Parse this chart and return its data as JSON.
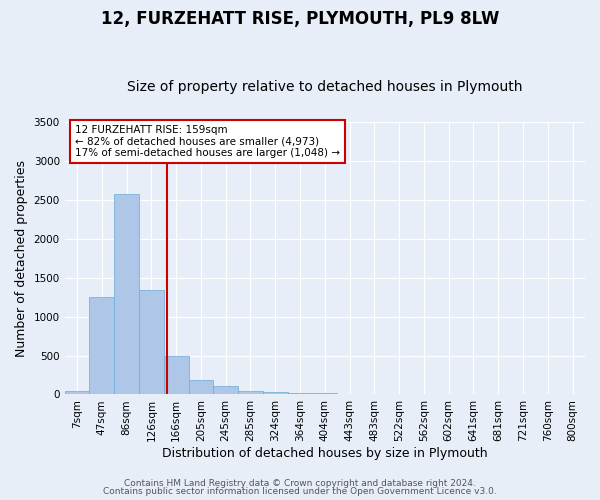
{
  "title": "12, FURZEHATT RISE, PLYMOUTH, PL9 8LW",
  "subtitle": "Size of property relative to detached houses in Plymouth",
  "xlabel": "Distribution of detached houses by size in Plymouth",
  "ylabel": "Number of detached properties",
  "bar_labels": [
    "7sqm",
    "47sqm",
    "86sqm",
    "126sqm",
    "166sqm",
    "205sqm",
    "245sqm",
    "285sqm",
    "324sqm",
    "364sqm",
    "404sqm",
    "443sqm",
    "483sqm",
    "522sqm",
    "562sqm",
    "602sqm",
    "641sqm",
    "681sqm",
    "721sqm",
    "760sqm",
    "800sqm"
  ],
  "bar_values": [
    50,
    1250,
    2580,
    1340,
    490,
    185,
    110,
    50,
    30,
    15,
    20,
    5,
    5,
    0,
    0,
    0,
    0,
    0,
    0,
    0,
    0
  ],
  "bar_color": "#aec6e8",
  "bar_edgecolor": "#6aabd6",
  "vline_x": 3.65,
  "vline_color": "#cc0000",
  "ylim": [
    0,
    3500
  ],
  "yticks": [
    0,
    500,
    1000,
    1500,
    2000,
    2500,
    3000,
    3500
  ],
  "annotation_text": "12 FURZEHATT RISE: 159sqm\n← 82% of detached houses are smaller (4,973)\n17% of semi-detached houses are larger (1,048) →",
  "annotation_box_color": "#ffffff",
  "annotation_box_edgecolor": "#cc0000",
  "footer_line1": "Contains HM Land Registry data © Crown copyright and database right 2024.",
  "footer_line2": "Contains public sector information licensed under the Open Government Licence v3.0.",
  "bg_color": "#e8eef8",
  "plot_bg_color": "#e8eef8",
  "grid_color": "#ffffff",
  "title_fontsize": 12,
  "subtitle_fontsize": 10,
  "axis_label_fontsize": 9,
  "tick_fontsize": 7.5,
  "footer_fontsize": 6.5
}
